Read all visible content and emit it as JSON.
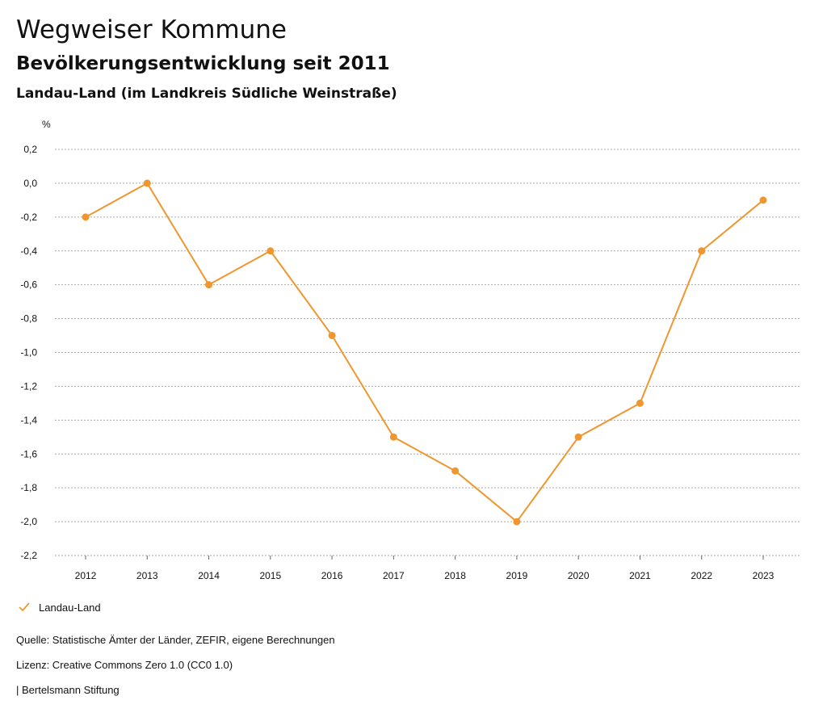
{
  "header": {
    "title": "Wegweiser Kommune",
    "subtitle": "Bevölkerungsentwicklung seit 2011",
    "region": "Landau-Land (im Landkreis Südliche Weinstraße)"
  },
  "chart_data": {
    "type": "line",
    "title": "Bevölkerungsentwicklung seit 2011",
    "ylabel": "%",
    "xlabel": "",
    "categories": [
      "2012",
      "2013",
      "2014",
      "2015",
      "2016",
      "2017",
      "2018",
      "2019",
      "2020",
      "2021",
      "2022",
      "2023"
    ],
    "series": [
      {
        "name": "Landau-Land",
        "color": "#f0962e",
        "values": [
          -0.2,
          0.0,
          -0.6,
          -0.4,
          -0.9,
          -1.5,
          -1.7,
          -2.0,
          -1.5,
          -1.3,
          -0.4,
          -0.1
        ]
      }
    ],
    "ylim": [
      -2.2,
      0.2
    ],
    "yticks": [
      0.2,
      0.0,
      -0.2,
      -0.4,
      -0.6,
      -0.8,
      -1.0,
      -1.2,
      -1.4,
      -1.6,
      -1.8,
      -2.0,
      -2.2
    ],
    "ytick_labels": [
      "0,2",
      "0,0",
      "-0,2",
      "-0,4",
      "-0,6",
      "-0,8",
      "-1,0",
      "-1,2",
      "-1,4",
      "-1,6",
      "-1,8",
      "-2,0",
      "-2,2"
    ],
    "grid": true,
    "legend": "bottom-left"
  },
  "legend": {
    "label": "Landau-Land",
    "icon": "checkmark-icon"
  },
  "footer": {
    "source": "Quelle: Statistische Ämter der Länder, ZEFIR, eigene Berechnungen",
    "license": "Lizenz: Creative Commons Zero 1.0 (CC0 1.0)",
    "brand": "| Bertelsmann Stiftung"
  },
  "colors": {
    "series": "#f0962e",
    "grid": "#aaaaaa",
    "text": "#111111"
  }
}
